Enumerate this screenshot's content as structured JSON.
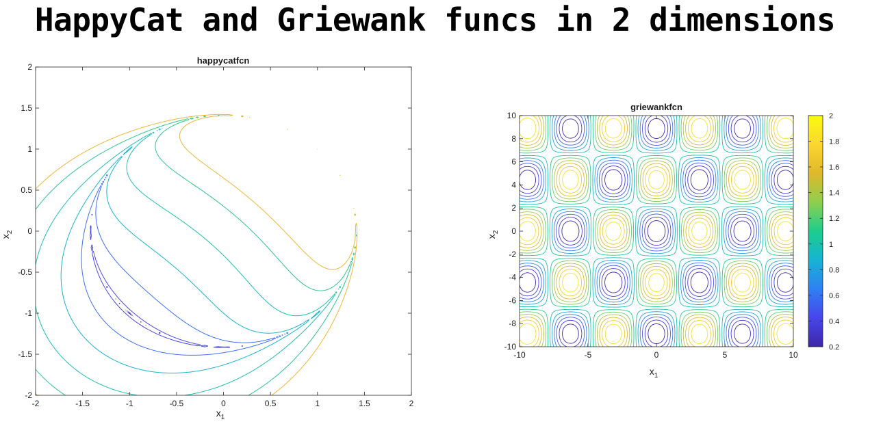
{
  "page": {
    "title": "HappyCat and Griewank funcs in 2 dimensions"
  },
  "colormap": [
    "#3e26a8",
    "#4746eb",
    "#2f80f3",
    "#16b4d2",
    "#1ccd8d",
    "#8ecf4d",
    "#dfb82c",
    "#fbd630",
    "#f9fb0e"
  ],
  "chart_data": [
    {
      "type": "contour",
      "function": "happycatfcn",
      "title": "happycatfcn",
      "xlabel": "x",
      "xlabel_sub": "1",
      "ylabel": "x",
      "ylabel_sub": "2",
      "xlim": [
        -2,
        2
      ],
      "ylim": [
        -2,
        2
      ],
      "xticks": [
        "-2",
        "-1.5",
        "-1",
        "-0.5",
        "0",
        "0.5",
        "1",
        "1.5",
        "2"
      ],
      "yticks": [
        "-2",
        "-1.5",
        "-1",
        "-0.5",
        "0",
        "0.5",
        "1",
        "1.5",
        "2"
      ],
      "levels": [
        0.25,
        0.55,
        0.97,
        1.25,
        1.55,
        1.85,
        2.05
      ],
      "level_colors": [
        "#3e26a8",
        "#4746eb",
        "#3a6ef5",
        "#16b4d2",
        "#1bbfb2",
        "#2cc589",
        "#f0b536"
      ],
      "colorbar": false
    },
    {
      "type": "contour",
      "function": "griewankfcn",
      "title": "griewankfcn",
      "xlabel": "x",
      "xlabel_sub": "1",
      "ylabel": "x",
      "ylabel_sub": "2",
      "xlim": [
        -10,
        10
      ],
      "ylim": [
        -10,
        10
      ],
      "xticks": [
        "-10",
        "-5",
        "0",
        "5",
        "10"
      ],
      "yticks": [
        "-10",
        "-8",
        "-6",
        "-4",
        "-2",
        "0",
        "2",
        "4",
        "6",
        "8",
        "10"
      ],
      "levels": [
        0.2,
        0.35,
        0.5,
        0.65,
        0.8,
        0.95,
        1.1,
        1.25,
        1.4,
        1.55,
        1.7,
        1.85
      ],
      "colorbar": true,
      "colorbar_range": [
        0.2,
        2
      ],
      "colorbar_ticks": [
        "0.2",
        "0.4",
        "0.6",
        "0.8",
        "1",
        "1.2",
        "1.4",
        "1.6",
        "1.8",
        "2"
      ]
    }
  ]
}
